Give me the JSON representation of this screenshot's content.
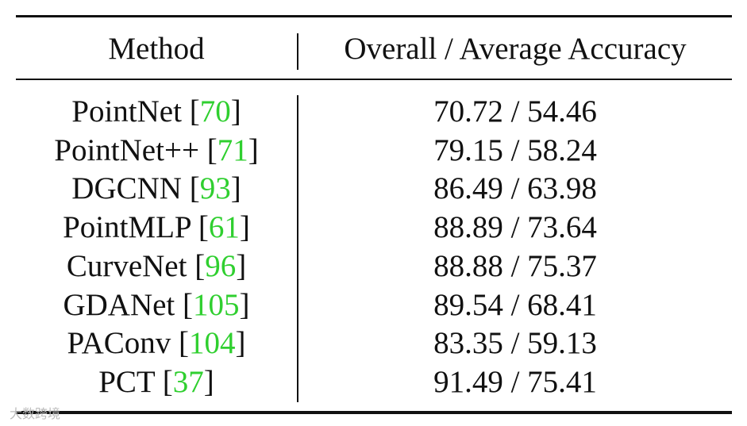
{
  "table": {
    "header": [
      "Method",
      "Overall / Average Accuracy"
    ],
    "brackets": [
      "[",
      "]"
    ],
    "rows": [
      {
        "method": "PointNet",
        "ref": "70",
        "accuracy": "70.72 / 54.46"
      },
      {
        "method": "PointNet++",
        "ref": "71",
        "accuracy": "79.15 / 58.24"
      },
      {
        "method": "DGCNN",
        "ref": "93",
        "accuracy": "86.49 / 63.98"
      },
      {
        "method": "PointMLP",
        "ref": "61",
        "accuracy": "88.89 / 73.64"
      },
      {
        "method": "CurveNet",
        "ref": "96",
        "accuracy": "88.88 / 75.37"
      },
      {
        "method": "GDANet",
        "ref": "105",
        "accuracy": "89.54 / 68.41"
      },
      {
        "method": "PAConv",
        "ref": "104",
        "accuracy": "83.35 / 59.13"
      },
      {
        "method": "PCT",
        "ref": "37",
        "accuracy": "91.49 / 75.41"
      }
    ]
  },
  "watermark": "大数跨境"
}
